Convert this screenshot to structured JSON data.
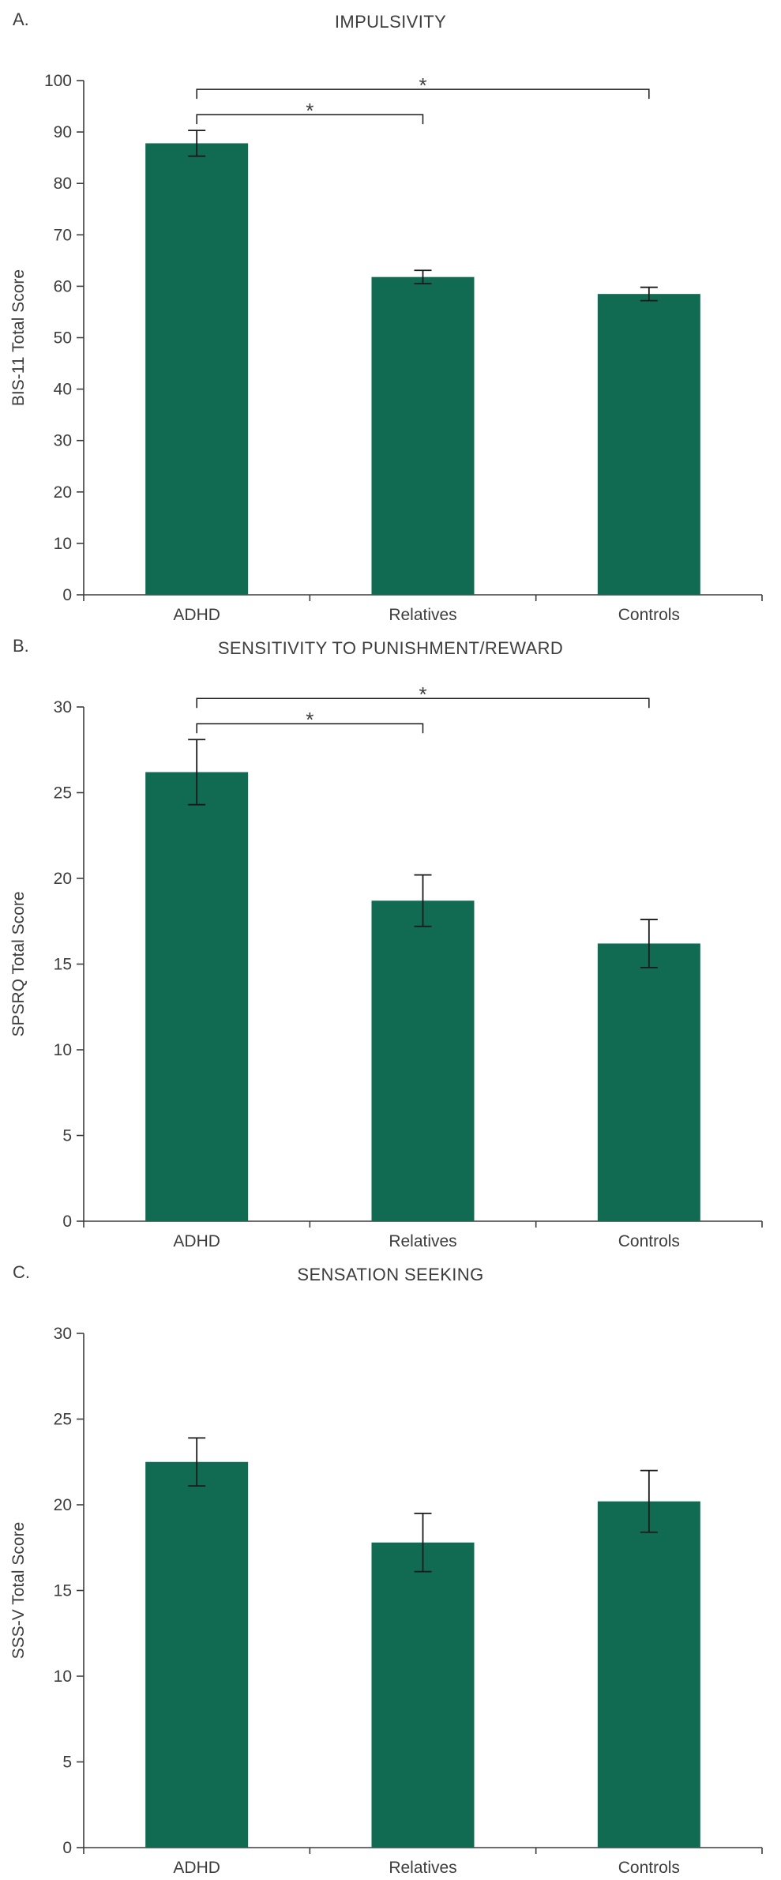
{
  "theme": {
    "bar_color": "#116b52",
    "axis_color": "#3d3d3d",
    "error_color": "#1a1a1a",
    "text_color": "#3d3d3d",
    "background": "#ffffff"
  },
  "chart_data": [
    {
      "type": "bar",
      "panel_label": "A.",
      "title": "IMPULSIVITY",
      "ylabel": "BIS-11 Total Score",
      "xlabel": "",
      "categories": [
        "ADHD",
        "Relatives",
        "Controls"
      ],
      "values": [
        87.8,
        61.8,
        58.5
      ],
      "errors": [
        2.5,
        1.3,
        1.3
      ],
      "ylim": [
        0,
        100
      ],
      "ytick_step": 10,
      "grid": false,
      "legend": "none",
      "significance": [
        {
          "from": 0,
          "to": 1,
          "label": "*"
        },
        {
          "from": 0,
          "to": 2,
          "label": "*"
        }
      ]
    },
    {
      "type": "bar",
      "panel_label": "B.",
      "title": "SENSITIVITY TO PUNISHMENT/REWARD",
      "ylabel": "SPSRQ Total Score",
      "xlabel": "",
      "categories": [
        "ADHD",
        "Relatives",
        "Controls"
      ],
      "values": [
        26.2,
        18.7,
        16.2
      ],
      "errors": [
        1.9,
        1.5,
        1.4
      ],
      "ylim": [
        0,
        30
      ],
      "ytick_step": 5,
      "grid": false,
      "legend": "none",
      "significance": [
        {
          "from": 0,
          "to": 1,
          "label": "*"
        },
        {
          "from": 0,
          "to": 2,
          "label": "*"
        }
      ]
    },
    {
      "type": "bar",
      "panel_label": "C.",
      "title": "SENSATION SEEKING",
      "ylabel": "SSS-V Total Score",
      "xlabel": "",
      "categories": [
        "ADHD",
        "Relatives",
        "Controls"
      ],
      "values": [
        22.5,
        17.8,
        20.2
      ],
      "errors": [
        1.4,
        1.7,
        1.8
      ],
      "ylim": [
        0,
        30
      ],
      "ytick_step": 5,
      "grid": false,
      "legend": "none",
      "significance": []
    }
  ]
}
